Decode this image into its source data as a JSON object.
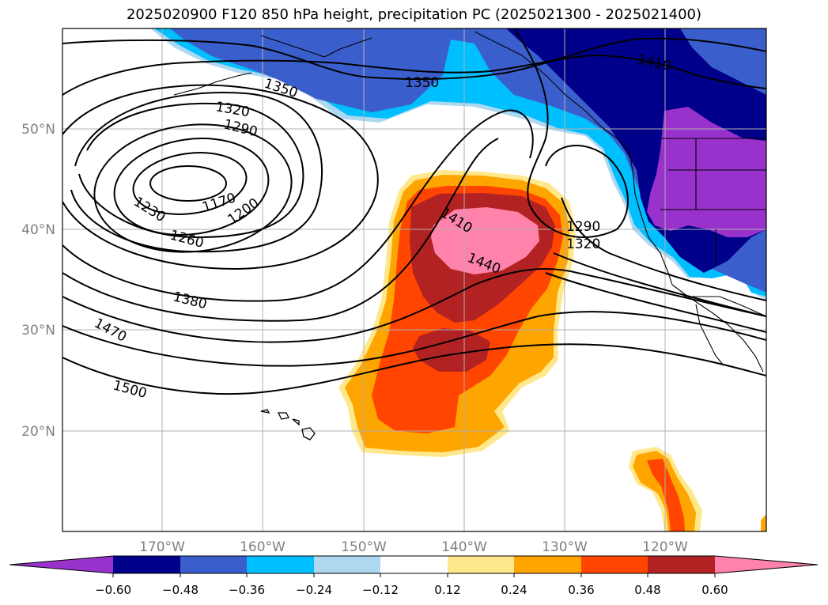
{
  "title": "2025020900 F120 850 hPa height, precipitation PC (2025021300 - 2025021400)",
  "colors": {
    "purple": "#9932cc",
    "navy": "#00008b",
    "royal": "#3a5fcd",
    "deepsky": "#00bfff",
    "lightsky": "#add8f0",
    "white": "#ffffff",
    "lightyellow": "#ffe88c",
    "orange": "#ffa500",
    "orangered": "#ff4500",
    "firebrick": "#b22222",
    "pink": "#ff82ab"
  },
  "lon_ticks": [
    "170°W",
    "160°W",
    "150°W",
    "140°W",
    "130°W",
    "120°W"
  ],
  "lat_ticks": [
    "50°N",
    "40°N",
    "30°N",
    "20°N"
  ],
  "contour_labels": {
    "c1410a": "1410",
    "c1350a": "1350",
    "c1350b": "1350",
    "c1320a": "1320",
    "c1290a": "1290",
    "c1170": "1170",
    "c1200": "1200",
    "c1230": "1230",
    "c1260": "1260",
    "c1410b": "1410",
    "c1440": "1440",
    "c1290b": "1290",
    "c1320b": "1320",
    "c1380": "1380",
    "c1470": "1470",
    "c1500": "1500"
  },
  "colorbar": {
    "labels": [
      "−0.60",
      "−0.48",
      "−0.36",
      "−0.24",
      "−0.12",
      "0.12",
      "0.24",
      "0.36",
      "0.48",
      "0.60"
    ]
  }
}
